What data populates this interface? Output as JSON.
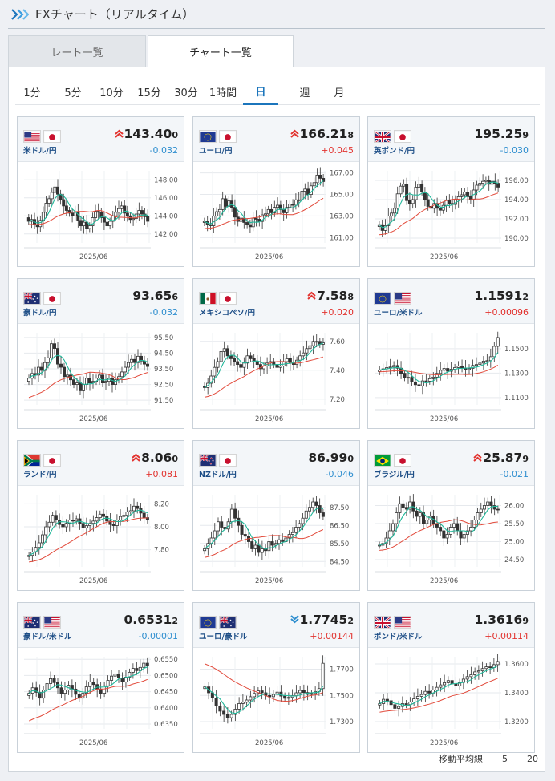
{
  "header": {
    "title": "FXチャート（リアルタイム）"
  },
  "tabs": [
    {
      "label": "レート一覧"
    },
    {
      "label": "チャート一覧"
    }
  ],
  "periods": [
    "1分",
    "5分",
    "10分",
    "15分",
    "30分",
    "1時間",
    "日",
    "週",
    "月"
  ],
  "active_period": "日",
  "legend": {
    "label": "移動平均線",
    "ma5": "5",
    "ma20": "20",
    "ma5_color": "#20b89a",
    "ma20_color": "#e24a3b"
  },
  "cards": [
    {
      "flags": [
        "us",
        "jp"
      ],
      "pair": "米ドル/円",
      "arrow": "up",
      "price_main": "143.40",
      "price_sub": "0",
      "change": "-0.032",
      "dir": "neg",
      "xlabel": "2025/06"
    },
    {
      "flags": [
        "eu",
        "jp"
      ],
      "pair": "ユーロ/円",
      "arrow": "up",
      "price_main": "166.21",
      "price_sub": "8",
      "change": "+0.045",
      "dir": "pos",
      "xlabel": "2025/06"
    },
    {
      "flags": [
        "gb",
        "jp"
      ],
      "pair": "英ポンド/円",
      "arrow": "",
      "price_main": "195.25",
      "price_sub": "9",
      "change": "-0.030",
      "dir": "neg",
      "xlabel": "2025/06"
    },
    {
      "flags": [
        "au",
        "jp"
      ],
      "pair": "豪ドル/円",
      "arrow": "",
      "price_main": "93.65",
      "price_sub": "6",
      "change": "-0.032",
      "dir": "neg",
      "xlabel": "2025/06"
    },
    {
      "flags": [
        "mx",
        "jp"
      ],
      "pair": "メキシコペソ/円",
      "arrow": "up",
      "price_main": "7.58",
      "price_sub": "8",
      "change": "+0.020",
      "dir": "pos",
      "xlabel": "2025/06"
    },
    {
      "flags": [
        "eu",
        "us"
      ],
      "pair": "ユーロ/米ドル",
      "arrow": "",
      "price_main": "1.1591",
      "price_sub": "2",
      "change": "+0.00096",
      "dir": "pos",
      "xlabel": "2025/06"
    },
    {
      "flags": [
        "za",
        "jp"
      ],
      "pair": "ランド/円",
      "arrow": "up",
      "price_main": "8.06",
      "price_sub": "0",
      "change": "+0.081",
      "dir": "pos",
      "xlabel": "2025/06"
    },
    {
      "flags": [
        "nz",
        "jp"
      ],
      "pair": "NZドル/円",
      "arrow": "",
      "price_main": "86.99",
      "price_sub": "0",
      "change": "-0.046",
      "dir": "neg",
      "xlabel": "2025/06"
    },
    {
      "flags": [
        "br",
        "jp"
      ],
      "pair": "ブラジル/円",
      "arrow": "up",
      "price_main": "25.87",
      "price_sub": "9",
      "change": "-0.021",
      "dir": "neg",
      "xlabel": "2025/06"
    },
    {
      "flags": [
        "au",
        "us"
      ],
      "pair": "豪ドル/米ドル",
      "arrow": "",
      "price_main": "0.6531",
      "price_sub": "2",
      "change": "-0.00001",
      "dir": "neg",
      "xlabel": "2025/06"
    },
    {
      "flags": [
        "eu",
        "au"
      ],
      "pair": "ユーロ/豪ドル",
      "arrow": "down",
      "price_main": "1.7745",
      "price_sub": "2",
      "change": "+0.00144",
      "dir": "pos",
      "xlabel": "2025/06"
    },
    {
      "flags": [
        "gb",
        "us"
      ],
      "pair": "ポンド/米ドル",
      "arrow": "",
      "price_main": "1.3616",
      "price_sub": "9",
      "change": "+0.00114",
      "dir": "pos",
      "xlabel": "2025/06"
    }
  ],
  "chart_data": [
    {
      "type": "candlestick",
      "title": "米ドル/円",
      "ylim": [
        141,
        149
      ],
      "yticks": [
        "142.00",
        "144.00",
        "146.00",
        "148.00"
      ],
      "ytick_values": [
        142,
        144,
        146,
        148
      ],
      "xlabel": "2025/06",
      "start": 143.8,
      "ma20_start": 143.0,
      "path": [
        143.4,
        143.6,
        143.0,
        142.8,
        143.5,
        144.4,
        145.4,
        145.9,
        146.6,
        147.2,
        146.4,
        145.8,
        145.1,
        144.6,
        144.3,
        144.0,
        144.4,
        143.5,
        142.9,
        143.3,
        142.6,
        142.9,
        143.8,
        144.5,
        144.4,
        143.8,
        143.3,
        142.9,
        143.4,
        144.0,
        144.4,
        144.8,
        145.1,
        144.3,
        144.0,
        143.6,
        143.7,
        144.2,
        144.6,
        144.2,
        143.9,
        143.4
      ]
    },
    {
      "type": "candlestick",
      "title": "ユーロ/円",
      "ylim": [
        160.5,
        167.2
      ],
      "yticks": [
        "161.00",
        "163.00",
        "165.00",
        "167.00"
      ],
      "ytick_values": [
        161,
        163,
        165,
        167
      ],
      "xlabel": "2025/06",
      "start": 162.4,
      "ma20_start": 161.8,
      "path": [
        162.5,
        162.2,
        162.1,
        163.0,
        163.4,
        163.6,
        164.6,
        163.9,
        164.4,
        163.8,
        162.9,
        162.5,
        162.8,
        162.4,
        162.2,
        162.0,
        162.8,
        162.7,
        162.5,
        163.1,
        163.2,
        163.6,
        163.3,
        163.8,
        164.0,
        163.6,
        163.3,
        163.8,
        164.1,
        164.0,
        164.5,
        164.5,
        165.3,
        165.5,
        165.0,
        165.8,
        166.1,
        166.8,
        166.5,
        166.2
      ]
    },
    {
      "type": "candlestick",
      "title": "英ポンド/円",
      "ylim": [
        189.5,
        197
      ],
      "yticks": [
        "190.00",
        "192.00",
        "194.00",
        "196.00"
      ],
      "ytick_values": [
        190,
        192,
        194,
        196
      ],
      "xlabel": "2025/06",
      "start": 191.2,
      "ma20_start": 190.3,
      "path": [
        191.4,
        190.8,
        191.3,
        192.3,
        192.6,
        193.1,
        194.6,
        195.4,
        195.6,
        193.9,
        193.6,
        194.0,
        195.3,
        195.6,
        194.8,
        194.0,
        193.3,
        193.1,
        193.6,
        193.1,
        192.9,
        193.4,
        193.9,
        193.6,
        193.5,
        194.0,
        194.3,
        194.5,
        194.8,
        194.3,
        194.0,
        195.0,
        195.5,
        195.7,
        195.9,
        196.0,
        195.6,
        195.9,
        195.7,
        195.3
      ]
    },
    {
      "type": "candlestick",
      "title": "豪ドル/円",
      "ylim": [
        91.2,
        95.8
      ],
      "yticks": [
        "91.50",
        "92.50",
        "93.50",
        "94.50",
        "95.50"
      ],
      "ytick_values": [
        91.5,
        92.5,
        93.5,
        94.5,
        95.5
      ],
      "xlabel": "2025/06",
      "start": 92.7,
      "ma20_start": 91.6,
      "path": [
        92.9,
        93.2,
        93.1,
        93.6,
        93.4,
        93.9,
        94.2,
        95.1,
        94.8,
        93.8,
        93.6,
        93.0,
        93.1,
        92.8,
        92.5,
        92.6,
        92.1,
        92.5,
        92.9,
        92.6,
        92.7,
        92.9,
        93.1,
        92.6,
        92.7,
        92.9,
        92.5,
        92.8,
        93.0,
        93.3,
        93.6,
        93.9,
        94.1,
        93.9,
        94.3,
        94.0,
        93.8,
        93.65
      ]
    },
    {
      "type": "candlestick",
      "title": "メキシコペソ/円",
      "ylim": [
        7.16,
        7.66
      ],
      "yticks": [
        "7.20",
        "7.40",
        "7.60"
      ],
      "ytick_values": [
        7.2,
        7.4,
        7.6
      ],
      "xlabel": "2025/06",
      "start": 7.29,
      "ma20_start": 7.21,
      "path": [
        7.28,
        7.31,
        7.36,
        7.42,
        7.46,
        7.53,
        7.55,
        7.5,
        7.48,
        7.46,
        7.44,
        7.42,
        7.45,
        7.5,
        7.48,
        7.46,
        7.44,
        7.41,
        7.43,
        7.45,
        7.46,
        7.44,
        7.42,
        7.43,
        7.46,
        7.48,
        7.45,
        7.44,
        7.47,
        7.5,
        7.52,
        7.55,
        7.57,
        7.6,
        7.6,
        7.58,
        7.59
      ]
    },
    {
      "type": "candlestick",
      "title": "ユーロ/米ドル",
      "ylim": [
        1.104,
        1.163
      ],
      "yticks": [
        "1.1100",
        "1.1300",
        "1.1500"
      ],
      "ytick_values": [
        1.11,
        1.13,
        1.15
      ],
      "xlabel": "2025/06",
      "start": 1.1312,
      "ma20_start": 1.131,
      "path": [
        1.1325,
        1.1335,
        1.1345,
        1.135,
        1.1362,
        1.134,
        1.1298,
        1.1264,
        1.1265,
        1.1228,
        1.1205,
        1.1195,
        1.1236,
        1.1234,
        1.1254,
        1.1267,
        1.1297,
        1.1323,
        1.1338,
        1.1315,
        1.1332,
        1.1345,
        1.1357,
        1.1342,
        1.133,
        1.1338,
        1.1363,
        1.137,
        1.1382,
        1.1398,
        1.1402,
        1.1434,
        1.1519,
        1.1591
      ]
    },
    {
      "type": "candlestick",
      "title": "ランド/円",
      "ylim": [
        7.65,
        8.28
      ],
      "yticks": [
        "7.80",
        "8.00",
        "8.20"
      ],
      "ytick_values": [
        7.8,
        8.0,
        8.2
      ],
      "xlabel": "2025/06",
      "start": 7.74,
      "ma20_start": 7.69,
      "path": [
        7.75,
        7.78,
        7.82,
        7.86,
        7.93,
        8.0,
        8.04,
        8.1,
        8.06,
        8.02,
        8.0,
        8.03,
        8.06,
        8.05,
        8.07,
        8.03,
        7.99,
        8.01,
        8.03,
        8.05,
        8.08,
        8.11,
        8.09,
        8.05,
        8.02,
        8.01,
        8.06,
        8.09,
        8.1,
        8.13,
        8.14,
        8.18,
        8.16,
        8.12,
        8.08,
        8.06
      ]
    },
    {
      "type": "candlestick",
      "title": "NZドル/円",
      "ylim": [
        84.2,
        88.2
      ],
      "yticks": [
        "84.50",
        "85.50",
        "86.50",
        "87.50"
      ],
      "ytick_values": [
        84.5,
        85.5,
        86.5,
        87.5
      ],
      "xlabel": "2025/06",
      "start": 85.1,
      "ma20_start": 84.7,
      "path": [
        85.2,
        85.5,
        85.8,
        86.2,
        86.7,
        86.4,
        86.3,
        86.7,
        87.4,
        86.9,
        86.5,
        86.0,
        85.9,
        85.6,
        85.2,
        85.4,
        85.0,
        85.2,
        85.1,
        85.6,
        85.4,
        85.5,
        85.7,
        85.6,
        85.8,
        86.0,
        86.1,
        86.4,
        86.6,
        86.9,
        87.3,
        87.5,
        87.8,
        87.6,
        87.2,
        86.99
      ]
    },
    {
      "type": "candlestick",
      "title": "ブラジル/円",
      "ylim": [
        24.3,
        26.3
      ],
      "yticks": [
        "24.50",
        "25.00",
        "25.50",
        "26.00"
      ],
      "ytick_values": [
        24.5,
        25.0,
        25.5,
        26.0
      ],
      "xlabel": "2025/06",
      "start": 24.9,
      "ma20_start": 24.75,
      "path": [
        24.9,
        24.95,
        25.1,
        25.3,
        25.5,
        25.8,
        26.05,
        25.95,
        25.9,
        26.1,
        25.85,
        25.7,
        25.8,
        25.5,
        25.6,
        25.7,
        25.5,
        25.4,
        25.3,
        25.1,
        25.2,
        25.4,
        25.5,
        25.3,
        25.1,
        25.2,
        25.3,
        25.4,
        25.6,
        25.8,
        25.9,
        26.0,
        26.1,
        26.0,
        25.9,
        25.88
      ]
    },
    {
      "type": "candlestick",
      "title": "豪ドル/米ドル",
      "ylim": [
        0.6335,
        0.6558
      ],
      "yticks": [
        "0.6350",
        "0.6400",
        "0.6450",
        "0.6500",
        "0.6550"
      ],
      "ytick_values": [
        0.635,
        0.64,
        0.645,
        0.65,
        0.655
      ],
      "xlabel": "2025/06",
      "start": 0.6438,
      "ma20_start": 0.6355,
      "path": [
        0.6445,
        0.6462,
        0.6448,
        0.643,
        0.6455,
        0.6475,
        0.649,
        0.6478,
        0.6462,
        0.6445,
        0.6455,
        0.647,
        0.6458,
        0.6442,
        0.643,
        0.6445,
        0.6465,
        0.648,
        0.6472,
        0.6458,
        0.6445,
        0.6468,
        0.6485,
        0.6498,
        0.6505,
        0.6492,
        0.648,
        0.6495,
        0.651,
        0.6522,
        0.6515,
        0.6525,
        0.6538,
        0.6531
      ]
    },
    {
      "type": "candlestick",
      "title": "ユーロ/豪ドル",
      "ylim": [
        1.7245,
        1.7795
      ],
      "yticks": [
        "1.7300",
        "1.7500",
        "1.7700"
      ],
      "ytick_values": [
        1.73,
        1.75,
        1.77
      ],
      "xlabel": "2025/06",
      "start": 1.7552,
      "ma20_start": 1.775,
      "path": [
        1.7565,
        1.752,
        1.748,
        1.742,
        1.738,
        1.7355,
        1.733,
        1.7355,
        1.7395,
        1.7438,
        1.7448,
        1.7465,
        1.749,
        1.7515,
        1.7535,
        1.752,
        1.75,
        1.749,
        1.7508,
        1.7525,
        1.7495,
        1.7478,
        1.7485,
        1.7498,
        1.752,
        1.7538,
        1.7522,
        1.7508,
        1.7515,
        1.753,
        1.7552,
        1.7745
      ]
    },
    {
      "type": "candlestick",
      "title": "ポンド/米ドル",
      "ylim": [
        1.315,
        1.365
      ],
      "yticks": [
        "1.3200",
        "1.3400",
        "1.3600"
      ],
      "ytick_values": [
        1.32,
        1.34,
        1.36
      ],
      "xlabel": "2025/06",
      "start": 1.3315,
      "ma20_start": 1.3262,
      "path": [
        1.3325,
        1.3355,
        1.3345,
        1.3318,
        1.3292,
        1.3305,
        1.3325,
        1.3318,
        1.3336,
        1.3358,
        1.3375,
        1.3388,
        1.341,
        1.3398,
        1.342,
        1.3438,
        1.3455,
        1.347,
        1.3485,
        1.3462,
        1.3448,
        1.3472,
        1.3495,
        1.3512,
        1.3525,
        1.3545,
        1.3552,
        1.3568,
        1.358,
        1.3575,
        1.3595,
        1.3617
      ]
    }
  ]
}
